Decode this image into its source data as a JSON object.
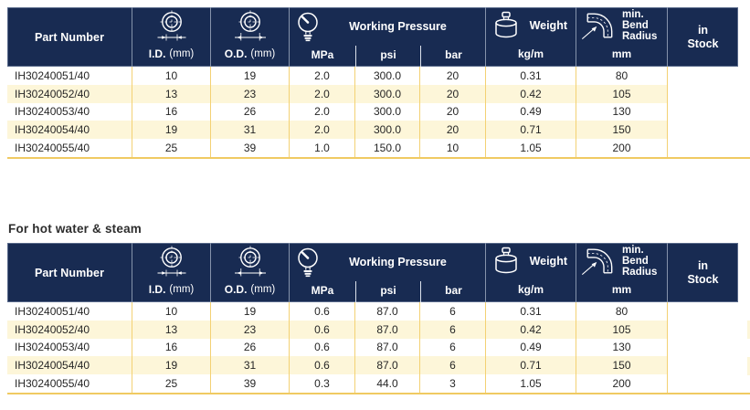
{
  "colors": {
    "header_bg": "#182b52",
    "header_text": "#ffffff",
    "header_divider": "#8593ab",
    "row_stripe": "#fdf6d9",
    "grid_gold": "#f3d173",
    "bottom_rule_gold": "#f0ca62",
    "body_text": "#262626"
  },
  "header": {
    "part_number": "Part Number",
    "id": {
      "label": "I.D.",
      "unit": "(mm)",
      "icon": "inner-diameter-icon"
    },
    "od": {
      "label": "O.D.",
      "unit": "(mm)",
      "icon": "outer-diameter-icon"
    },
    "working_pressure": {
      "label": "Working Pressure",
      "icon": "pressure-gauge-icon",
      "units": [
        "MPa",
        "psi",
        "bar"
      ]
    },
    "weight": {
      "label": "Weight",
      "icon": "weight-icon",
      "unit": "kg/m"
    },
    "bend_radius": {
      "lines": [
        "min.",
        "Bend",
        "Radius"
      ],
      "icon": "bend-radius-icon",
      "unit": "mm"
    },
    "in_stock": {
      "lines": [
        "in",
        "Stock"
      ]
    }
  },
  "section2": {
    "label": "For hot water & steam"
  },
  "tables": [
    {
      "id": "standard",
      "rows": [
        [
          "IH30240051/40",
          "10",
          "19",
          "2.0",
          "300.0",
          "20",
          "0.31",
          "80",
          ""
        ],
        [
          "IH30240052/40",
          "13",
          "23",
          "2.0",
          "300.0",
          "20",
          "0.42",
          "105",
          ""
        ],
        [
          "IH30240053/40",
          "16",
          "26",
          "2.0",
          "300.0",
          "20",
          "0.49",
          "130",
          ""
        ],
        [
          "IH30240054/40",
          "19",
          "31",
          "2.0",
          "300.0",
          "20",
          "0.71",
          "150",
          ""
        ],
        [
          "IH30240055/40",
          "25",
          "39",
          "1.0",
          "150.0",
          "10",
          "1.05",
          "200",
          ""
        ]
      ]
    },
    {
      "id": "hot-water-steam",
      "rows": [
        [
          "IH30240051/40",
          "10",
          "19",
          "0.6",
          "87.0",
          "6",
          "0.31",
          "80",
          ""
        ],
        [
          "IH30240052/40",
          "13",
          "23",
          "0.6",
          "87.0",
          "6",
          "0.42",
          "105",
          ""
        ],
        [
          "IH30240053/40",
          "16",
          "26",
          "0.6",
          "87.0",
          "6",
          "0.49",
          "130",
          ""
        ],
        [
          "IH30240054/40",
          "19",
          "31",
          "0.6",
          "87.0",
          "6",
          "0.71",
          "150",
          ""
        ],
        [
          "IH30240055/40",
          "25",
          "39",
          "0.3",
          "44.0",
          "3",
          "1.05",
          "200",
          ""
        ]
      ]
    }
  ]
}
